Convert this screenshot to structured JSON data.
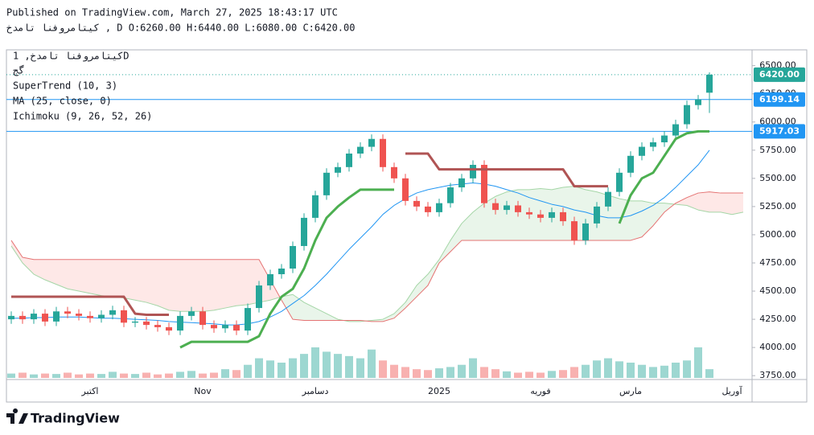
{
  "header": {
    "published": "Published on TradingView.com, March 27, 2025 18:43:17 UTC",
    "symbol_line": "کیتامروفنا تامدخ , D O:6260.00 H:6440.00 L:6080.00 C:6420.00"
  },
  "legend": [
    "کیتامروفنا تامدخ, 1D",
    "گج",
    "SuperTrend (10, 3)",
    "MA (25, close, 0)",
    "Ichimoku (9, 26, 52, 26)"
  ],
  "footer": {
    "brand": "TradingView"
  },
  "chart_data": {
    "type": "candlestick",
    "categories": [
      null,
      null,
      null,
      null,
      null,
      null,
      null,
      "اکتبر",
      null,
      null,
      null,
      null,
      null,
      null,
      null,
      null,
      null,
      "Nov",
      null,
      null,
      null,
      null,
      null,
      null,
      null,
      null,
      null,
      "دسامبر",
      null,
      null,
      null,
      null,
      null,
      null,
      null,
      null,
      null,
      null,
      "2025",
      null,
      null,
      null,
      null,
      null,
      null,
      null,
      null,
      "فوریه",
      null,
      null,
      null,
      null,
      null,
      null,
      null,
      "مارس",
      null,
      null,
      null,
      null,
      null,
      null,
      null,
      null,
      "آوریل",
      null
    ],
    "open": [
      4250,
      4280,
      4250,
      4300,
      4230,
      4320,
      4300,
      4280,
      4260,
      4290,
      4330,
      4220,
      4230,
      4200,
      4180,
      4150,
      4280,
      4320,
      4200,
      4170,
      4200,
      4150,
      4350,
      4550,
      4650,
      4700,
      4900,
      5150,
      5350,
      5550,
      5600,
      5720,
      5780,
      5850,
      5600,
      5500,
      5300,
      5250,
      5200,
      5280,
      5420,
      5500,
      5620,
      5280,
      5220,
      5260,
      5200,
      5180,
      5150,
      5200,
      5120,
      4950,
      5100,
      5250,
      5380,
      5550,
      5700,
      5780,
      5820,
      5880,
      5980,
      6150,
      6260,
      null,
      null,
      null
    ],
    "high": [
      4320,
      4320,
      4340,
      4340,
      4360,
      4360,
      4340,
      4320,
      4330,
      4370,
      4370,
      4270,
      4270,
      4240,
      4220,
      4320,
      4360,
      4360,
      4240,
      4240,
      4240,
      4390,
      4590,
      4690,
      4740,
      4940,
      5190,
      5390,
      5590,
      5640,
      5760,
      5820,
      5890,
      5890,
      5640,
      5540,
      5340,
      5290,
      5320,
      5460,
      5540,
      5660,
      5660,
      5320,
      5300,
      5300,
      5240,
      5220,
      5240,
      5240,
      5160,
      5140,
      5290,
      5420,
      5590,
      5740,
      5820,
      5860,
      5920,
      6020,
      6190,
      6240,
      6440,
      null,
      null,
      null
    ],
    "low": [
      4210,
      4210,
      4210,
      4190,
      4190,
      4260,
      4240,
      4220,
      4220,
      4250,
      4180,
      4180,
      4160,
      4140,
      4110,
      4110,
      4240,
      4160,
      4130,
      4130,
      4110,
      4110,
      4310,
      4510,
      4610,
      4660,
      4860,
      5110,
      5310,
      5510,
      5560,
      5680,
      5740,
      5560,
      5460,
      5260,
      5210,
      5160,
      5160,
      5240,
      5380,
      5460,
      5240,
      5180,
      5180,
      5160,
      5140,
      5110,
      5110,
      5080,
      4910,
      4910,
      5060,
      5210,
      5340,
      5510,
      5660,
      5740,
      5780,
      5840,
      5940,
      6110,
      6080,
      null,
      null,
      null
    ],
    "close": [
      4280,
      4250,
      4300,
      4230,
      4320,
      4300,
      4280,
      4260,
      4290,
      4330,
      4220,
      4230,
      4200,
      4180,
      4150,
      4280,
      4320,
      4200,
      4170,
      4200,
      4150,
      4350,
      4550,
      4650,
      4700,
      4900,
      5150,
      5350,
      5550,
      5600,
      5720,
      5780,
      5850,
      5600,
      5500,
      5300,
      5250,
      5200,
      5280,
      5420,
      5500,
      5620,
      5280,
      5220,
      5260,
      5200,
      5180,
      5150,
      5200,
      5120,
      4950,
      5100,
      5250,
      5380,
      5550,
      5700,
      5780,
      5820,
      5880,
      5980,
      6150,
      6200,
      6420,
      null,
      null,
      null
    ],
    "volume": [
      10,
      12,
      8,
      10,
      9,
      12,
      8,
      10,
      9,
      14,
      10,
      9,
      12,
      8,
      10,
      14,
      16,
      10,
      12,
      20,
      18,
      30,
      45,
      40,
      35,
      45,
      55,
      70,
      60,
      55,
      50,
      45,
      65,
      40,
      30,
      25,
      20,
      18,
      22,
      25,
      30,
      45,
      25,
      20,
      15,
      12,
      14,
      12,
      16,
      18,
      25,
      30,
      40,
      45,
      38,
      35,
      30,
      25,
      28,
      35,
      40,
      70,
      20,
      null,
      null,
      null
    ],
    "up_color": "#26a69a",
    "down_color": "#ef5350",
    "ma": {
      "color": "#2196f3",
      "values": [
        4260,
        4260,
        4265,
        4265,
        4270,
        4270,
        4270,
        4265,
        4260,
        4260,
        4255,
        4250,
        4245,
        4240,
        4230,
        4225,
        4220,
        4215,
        4210,
        4200,
        4200,
        4210,
        4230,
        4270,
        4320,
        4390,
        4460,
        4550,
        4650,
        4760,
        4870,
        4970,
        5070,
        5180,
        5260,
        5320,
        5370,
        5400,
        5420,
        5440,
        5450,
        5460,
        5450,
        5430,
        5400,
        5370,
        5330,
        5300,
        5270,
        5250,
        5220,
        5200,
        5170,
        5150,
        5150,
        5170,
        5210,
        5260,
        5330,
        5420,
        5520,
        5620,
        5750,
        null,
        null,
        null
      ]
    },
    "supertrend": {
      "up_color": "#4caf50",
      "down_color": "#b05454",
      "up": [
        null,
        null,
        null,
        null,
        null,
        null,
        null,
        null,
        null,
        null,
        null,
        null,
        null,
        null,
        null,
        4000,
        4050,
        4050,
        4050,
        4050,
        4050,
        4050,
        4100,
        4300,
        4450,
        4520,
        4700,
        4950,
        5150,
        5250,
        5330,
        5400,
        5400,
        5400,
        5400,
        null,
        null,
        null,
        null,
        null,
        null,
        null,
        null,
        null,
        null,
        null,
        null,
        null,
        null,
        null,
        null,
        null,
        null,
        null,
        5100,
        5350,
        5500,
        5550,
        5700,
        5850,
        5900,
        5917,
        5917,
        null,
        null,
        null
      ],
      "down": [
        4450,
        4450,
        4450,
        4450,
        4450,
        4450,
        4450,
        4450,
        4450,
        4450,
        4450,
        4300,
        4290,
        4290,
        4290,
        null,
        null,
        null,
        null,
        null,
        null,
        null,
        null,
        null,
        null,
        null,
        null,
        null,
        null,
        null,
        null,
        null,
        null,
        null,
        null,
        5720,
        5720,
        5720,
        5580,
        5580,
        5580,
        5580,
        5580,
        5580,
        5580,
        5580,
        5580,
        5580,
        5580,
        5580,
        5430,
        5430,
        5430,
        5430,
        null,
        null,
        null,
        null,
        null,
        null,
        null,
        null,
        null,
        null,
        null,
        null
      ]
    },
    "ichimoku": {
      "span_a_color": "#a5d6a7",
      "span_b_color": "#e57373",
      "bull_fill": "rgba(76,175,80,0.12)",
      "bear_fill": "rgba(244,67,54,0.12)",
      "span_a": [
        4900,
        4750,
        4650,
        4600,
        4560,
        4520,
        4500,
        4480,
        4460,
        4450,
        4440,
        4420,
        4400,
        4370,
        4330,
        4320,
        4320,
        4320,
        4330,
        4350,
        4370,
        4380,
        4400,
        4420,
        4450,
        4470,
        4400,
        4350,
        4300,
        4250,
        4230,
        4230,
        4240,
        4250,
        4300,
        4400,
        4550,
        4650,
        4780,
        4950,
        5100,
        5200,
        5280,
        5340,
        5380,
        5400,
        5400,
        5410,
        5400,
        5420,
        5430,
        5400,
        5380,
        5350,
        5320,
        5300,
        5300,
        5280,
        5280,
        5270,
        5260,
        5220,
        5200,
        5200,
        5180,
        5200
      ],
      "span_b": [
        4950,
        4800,
        4780,
        4780,
        4780,
        4780,
        4780,
        4780,
        4780,
        4780,
        4780,
        4780,
        4780,
        4780,
        4780,
        4780,
        4780,
        4780,
        4780,
        4780,
        4780,
        4780,
        4780,
        4600,
        4420,
        4250,
        4240,
        4240,
        4240,
        4240,
        4240,
        4240,
        4230,
        4230,
        4260,
        4350,
        4450,
        4550,
        4750,
        4850,
        4950,
        4950,
        4950,
        4950,
        4950,
        4950,
        4950,
        4950,
        4950,
        4950,
        4950,
        4950,
        4950,
        4950,
        4950,
        4950,
        4980,
        5080,
        5200,
        5280,
        5330,
        5370,
        5380,
        5370,
        5370,
        5370
      ]
    },
    "price_lines": [
      {
        "value": 6420,
        "label": "6420.00",
        "color": "#26a69a",
        "dotted": true
      },
      {
        "value": 6199.14,
        "label": "6199.14",
        "color": "#2196f3",
        "dotted": false
      },
      {
        "value": 5917.03,
        "label": "5917.03",
        "color": "#2196f3",
        "dotted": false
      }
    ],
    "ylim": [
      3730,
      6640
    ],
    "yticks": [
      {
        "value": 3750,
        "label": "3750.00"
      },
      {
        "value": 4000,
        "label": "4000.00"
      },
      {
        "value": 4250,
        "label": "4250.00"
      },
      {
        "value": 4500,
        "label": "4500.00"
      },
      {
        "value": 4750,
        "label": "4750.00"
      },
      {
        "value": 5000,
        "label": "5000.00"
      },
      {
        "value": 5250,
        "label": "5250.00"
      },
      {
        "value": 5500,
        "label": "5500.00"
      },
      {
        "value": 5750,
        "label": "5750.00"
      },
      {
        "value": 6000,
        "label": "6000.00"
      },
      {
        "value": 6250,
        "label": "6250.00"
      },
      {
        "value": 6500,
        "label": "6500.00"
      }
    ]
  }
}
